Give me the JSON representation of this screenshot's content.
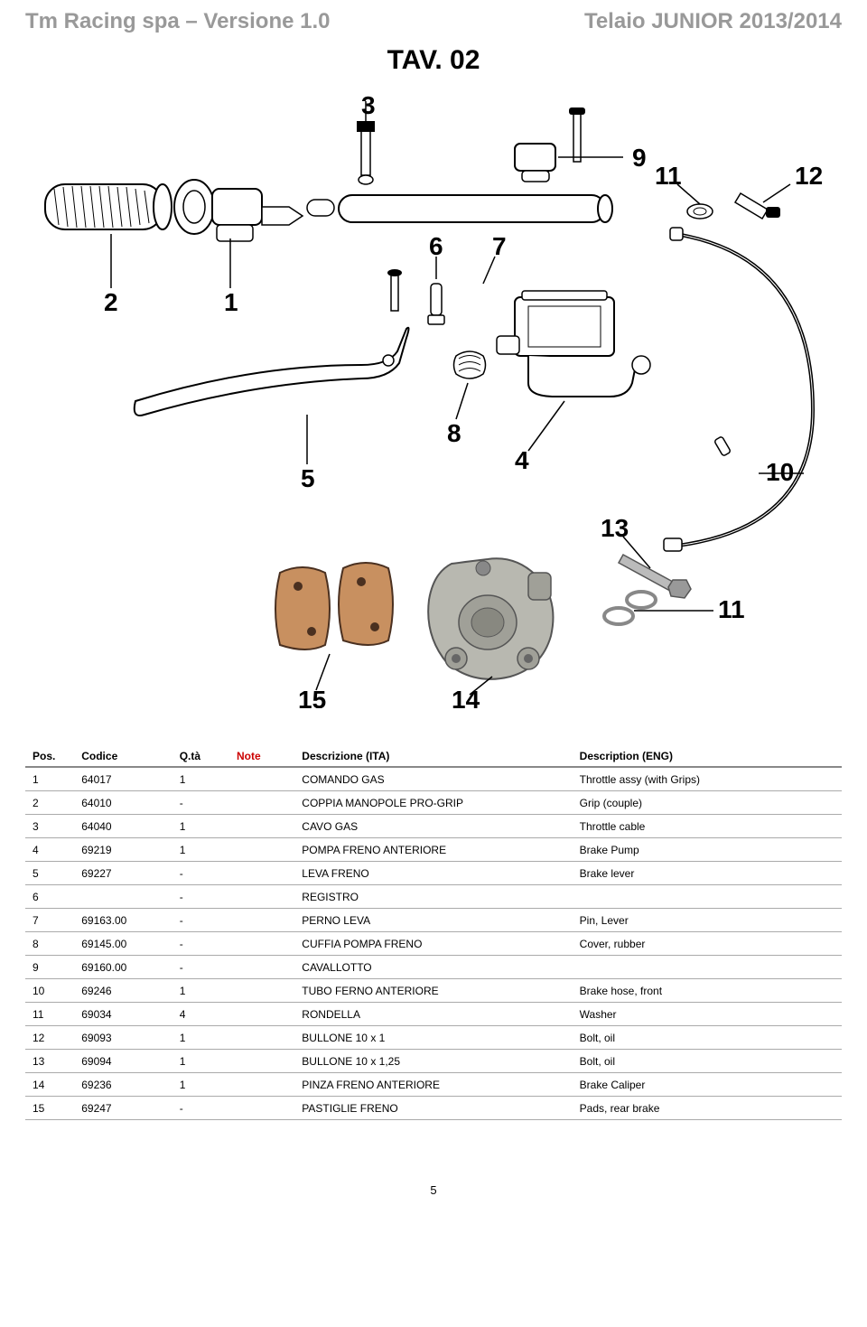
{
  "header": {
    "left": "Tm Racing spa – Versione 1.0",
    "right": "Telaio JUNIOR 2013/2014"
  },
  "title": "TAV. 02",
  "diagram": {
    "callouts": [
      "1",
      "2",
      "3",
      "4",
      "5",
      "6",
      "7",
      "8",
      "9",
      "10",
      "11",
      "12",
      "13",
      "14",
      "15"
    ]
  },
  "table": {
    "headers": {
      "pos": "Pos.",
      "codice": "Codice",
      "qta": "Q.tà",
      "note": "Note",
      "descr_ita": "Descrizione (ITA)",
      "descr_eng": "Description (ENG)"
    },
    "rows": [
      {
        "pos": "1",
        "codice": "64017",
        "qta": "1",
        "note": "",
        "ita": "COMANDO GAS",
        "eng": "Throttle assy (with Grips)"
      },
      {
        "pos": "2",
        "codice": "64010",
        "qta": "-",
        "note": "",
        "ita": "COPPIA MANOPOLE PRO-GRIP",
        "eng": "Grip (couple)"
      },
      {
        "pos": "3",
        "codice": "64040",
        "qta": "1",
        "note": "",
        "ita": "CAVO GAS",
        "eng": "Throttle cable"
      },
      {
        "pos": "4",
        "codice": "69219",
        "qta": "1",
        "note": "",
        "ita": "POMPA FRENO ANTERIORE",
        "eng": "Brake Pump"
      },
      {
        "pos": "5",
        "codice": "69227",
        "qta": "-",
        "note": "",
        "ita": "LEVA FRENO",
        "eng": "Brake lever"
      },
      {
        "pos": "6",
        "codice": "",
        "qta": "-",
        "note": "",
        "ita": "REGISTRO",
        "eng": ""
      },
      {
        "pos": "7",
        "codice": "69163.00",
        "qta": "-",
        "note": "",
        "ita": "PERNO LEVA",
        "eng": "Pin, Lever"
      },
      {
        "pos": "8",
        "codice": "69145.00",
        "qta": "-",
        "note": "",
        "ita": "CUFFIA POMPA FRENO",
        "eng": "Cover, rubber"
      },
      {
        "pos": "9",
        "codice": "69160.00",
        "qta": "-",
        "note": "",
        "ita": "CAVALLOTTO",
        "eng": ""
      },
      {
        "pos": "10",
        "codice": "69246",
        "qta": "1",
        "note": "",
        "ita": "TUBO FERNO ANTERIORE",
        "eng": "Brake hose, front"
      },
      {
        "pos": "11",
        "codice": "69034",
        "qta": "4",
        "note": "",
        "ita": "RONDELLA",
        "eng": "Washer"
      },
      {
        "pos": "12",
        "codice": "69093",
        "qta": "1",
        "note": "",
        "ita": "BULLONE 10 x 1",
        "eng": "Bolt, oil"
      },
      {
        "pos": "13",
        "codice": "69094",
        "qta": "1",
        "note": "",
        "ita": "BULLONE 10 x 1,25",
        "eng": "Bolt, oil"
      },
      {
        "pos": "14",
        "codice": "69236",
        "qta": "1",
        "note": "",
        "ita": "PINZA FRENO ANTERIORE",
        "eng": "Brake Caliper"
      },
      {
        "pos": "15",
        "codice": "69247",
        "qta": "-",
        "note": "",
        "ita": "PASTIGLIE FRENO",
        "eng": "Pads, rear brake"
      }
    ]
  },
  "page_number": "5",
  "colors": {
    "header_grey": "#999999",
    "border_grey": "#888888",
    "row_border": "#aaaaaa",
    "note_red": "#cc0000"
  }
}
